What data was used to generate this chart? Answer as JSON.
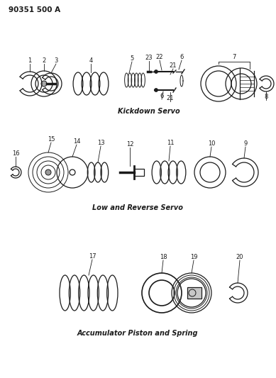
{
  "title": "90351 500 A",
  "background_color": "#ffffff",
  "line_color": "#1a1a1a",
  "section1_label": "Kickdown Servo",
  "section2_label": "Low and Reverse Servo",
  "section3_label": "Accumulator Piston and Spring",
  "fig_width": 3.89,
  "fig_height": 5.33,
  "dpi": 100
}
